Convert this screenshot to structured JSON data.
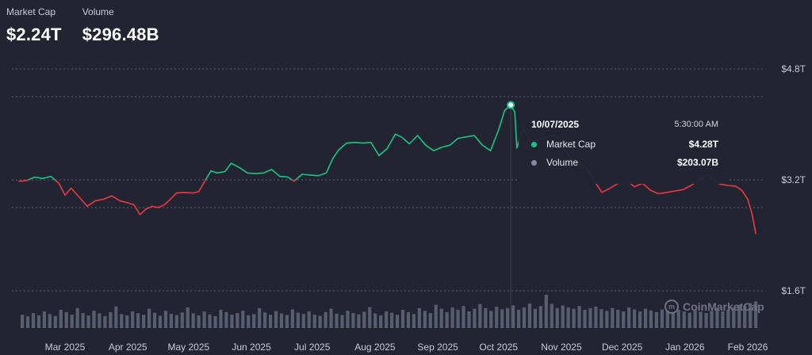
{
  "header": {
    "market_cap_label": "Market Cap",
    "market_cap_value": "$2.24T",
    "volume_label": "Volume",
    "volume_value": "$296.48B"
  },
  "tooltip": {
    "date": "10/07/2025",
    "time": "5:30:00 AM",
    "series": [
      {
        "name": "Market Cap",
        "value": "$4.28T",
        "color": "#16c784"
      },
      {
        "name": "Volume",
        "value": "$203.07B",
        "color": "#858ca2"
      }
    ]
  },
  "watermark": {
    "text": "CoinMarketCap",
    "icon": "coinmarketcap-logo-icon"
  },
  "colors": {
    "up": "#16c784",
    "down": "#ea3943",
    "volume": "#858ca2",
    "grid": "#5b5f6d"
  },
  "chart_data": {
    "type": "line",
    "baseline": 3.2,
    "y_unit": "T",
    "yticks": [
      {
        "value": 4.8,
        "label": "$4.8T"
      },
      {
        "value": 3.2,
        "label": "$3.2T"
      },
      {
        "value": 1.6,
        "label": "$1.6T"
      }
    ],
    "ylim": [
      1.6,
      4.8
    ],
    "gridlines": [
      4.8,
      4.4,
      3.2,
      2.8,
      1.6
    ],
    "xticks": [
      {
        "date": "2025-03-01",
        "label": "Mar 2025"
      },
      {
        "date": "2025-04-01",
        "label": "Apr 2025"
      },
      {
        "date": "2025-05-01",
        "label": "May 2025"
      },
      {
        "date": "2025-06-01",
        "label": "Jun 2025"
      },
      {
        "date": "2025-07-01",
        "label": "Jul 2025"
      },
      {
        "date": "2025-08-01",
        "label": "Aug 2025"
      },
      {
        "date": "2025-09-01",
        "label": "Sep 2025"
      },
      {
        "date": "2025-10-01",
        "label": "Oct 2025"
      },
      {
        "date": "2025-11-01",
        "label": "Nov 2025"
      },
      {
        "date": "2025-12-01",
        "label": "Dec 2025"
      },
      {
        "date": "2026-01-01",
        "label": "Jan 2026"
      },
      {
        "date": "2026-02-01",
        "label": "Feb 2026"
      }
    ],
    "highlight": {
      "date": "2025-10-07",
      "value": 4.28
    },
    "series": [
      {
        "name": "Market Cap",
        "points": [
          [
            "2025-02-06",
            3.18
          ],
          [
            "2025-02-10",
            3.19
          ],
          [
            "2025-02-14",
            3.24
          ],
          [
            "2025-02-18",
            3.22
          ],
          [
            "2025-02-22",
            3.25
          ],
          [
            "2025-02-26",
            3.15
          ],
          [
            "2025-03-01",
            2.98
          ],
          [
            "2025-03-04",
            3.08
          ],
          [
            "2025-03-08",
            2.95
          ],
          [
            "2025-03-12",
            2.82
          ],
          [
            "2025-03-16",
            2.9
          ],
          [
            "2025-03-20",
            2.92
          ],
          [
            "2025-03-24",
            2.97
          ],
          [
            "2025-03-28",
            2.9
          ],
          [
            "2025-04-01",
            2.87
          ],
          [
            "2025-04-04",
            2.84
          ],
          [
            "2025-04-07",
            2.7
          ],
          [
            "2025-04-10",
            2.78
          ],
          [
            "2025-04-13",
            2.82
          ],
          [
            "2025-04-16",
            2.8
          ],
          [
            "2025-04-19",
            2.84
          ],
          [
            "2025-04-22",
            2.92
          ],
          [
            "2025-04-25",
            3.01
          ],
          [
            "2025-04-29",
            3.02
          ],
          [
            "2025-05-03",
            3.01
          ],
          [
            "2025-05-06",
            3.03
          ],
          [
            "2025-05-09",
            3.18
          ],
          [
            "2025-05-12",
            3.33
          ],
          [
            "2025-05-15",
            3.3
          ],
          [
            "2025-05-19",
            3.32
          ],
          [
            "2025-05-22",
            3.44
          ],
          [
            "2025-05-26",
            3.38
          ],
          [
            "2025-05-30",
            3.3
          ],
          [
            "2025-06-03",
            3.29
          ],
          [
            "2025-06-07",
            3.3
          ],
          [
            "2025-06-11",
            3.35
          ],
          [
            "2025-06-15",
            3.25
          ],
          [
            "2025-06-19",
            3.24
          ],
          [
            "2025-06-22",
            3.18
          ],
          [
            "2025-06-26",
            3.28
          ],
          [
            "2025-06-30",
            3.27
          ],
          [
            "2025-07-04",
            3.26
          ],
          [
            "2025-07-08",
            3.3
          ],
          [
            "2025-07-11",
            3.5
          ],
          [
            "2025-07-14",
            3.63
          ],
          [
            "2025-07-18",
            3.73
          ],
          [
            "2025-07-22",
            3.74
          ],
          [
            "2025-07-26",
            3.73
          ],
          [
            "2025-07-30",
            3.74
          ],
          [
            "2025-08-03",
            3.55
          ],
          [
            "2025-08-07",
            3.65
          ],
          [
            "2025-08-11",
            3.86
          ],
          [
            "2025-08-14",
            3.82
          ],
          [
            "2025-08-18",
            3.72
          ],
          [
            "2025-08-22",
            3.84
          ],
          [
            "2025-08-26",
            3.7
          ],
          [
            "2025-08-30",
            3.62
          ],
          [
            "2025-09-03",
            3.67
          ],
          [
            "2025-09-07",
            3.7
          ],
          [
            "2025-09-11",
            3.8
          ],
          [
            "2025-09-15",
            3.82
          ],
          [
            "2025-09-19",
            3.84
          ],
          [
            "2025-09-23",
            3.7
          ],
          [
            "2025-09-27",
            3.62
          ],
          [
            "2025-10-01",
            3.92
          ],
          [
            "2025-10-04",
            4.2
          ],
          [
            "2025-10-07",
            4.28
          ],
          [
            "2025-10-09",
            4.18
          ],
          [
            "2025-10-10",
            3.66
          ],
          [
            "2025-10-13",
            3.95
          ],
          [
            "2025-10-17",
            3.75
          ],
          [
            "2025-10-21",
            3.78
          ],
          [
            "2025-10-25",
            3.82
          ],
          [
            "2025-10-29",
            3.85
          ],
          [
            "2025-11-02",
            3.65
          ],
          [
            "2025-11-06",
            3.5
          ],
          [
            "2025-11-10",
            3.45
          ],
          [
            "2025-11-14",
            3.35
          ],
          [
            "2025-11-18",
            3.15
          ],
          [
            "2025-11-21",
            3.02
          ],
          [
            "2025-11-25",
            3.08
          ],
          [
            "2025-11-29",
            3.15
          ],
          [
            "2025-12-03",
            3.2
          ],
          [
            "2025-12-07",
            3.1
          ],
          [
            "2025-12-11",
            3.15
          ],
          [
            "2025-12-15",
            3.05
          ],
          [
            "2025-12-19",
            3.0
          ],
          [
            "2025-12-23",
            3.02
          ],
          [
            "2025-12-27",
            3.04
          ],
          [
            "2025-12-31",
            3.06
          ],
          [
            "2026-01-04",
            3.12
          ],
          [
            "2026-01-08",
            3.2
          ],
          [
            "2026-01-12",
            3.28
          ],
          [
            "2026-01-15",
            3.21
          ],
          [
            "2026-01-18",
            3.14
          ],
          [
            "2026-01-22",
            3.12
          ],
          [
            "2026-01-26",
            3.11
          ],
          [
            "2026-01-29",
            3.05
          ],
          [
            "2026-02-01",
            2.92
          ],
          [
            "2026-02-03",
            2.72
          ],
          [
            "2026-02-05",
            2.42
          ]
        ]
      },
      {
        "name": "Volume",
        "ylim": [
          0,
          1
        ],
        "values": [
          0.4,
          0.35,
          0.45,
          0.38,
          0.5,
          0.42,
          0.36,
          0.55,
          0.48,
          0.4,
          0.6,
          0.45,
          0.38,
          0.52,
          0.44,
          0.36,
          0.48,
          0.65,
          0.42,
          0.38,
          0.5,
          0.45,
          0.4,
          0.58,
          0.46,
          0.37,
          0.52,
          0.43,
          0.39,
          0.47,
          0.62,
          0.44,
          0.38,
          0.5,
          0.41,
          0.36,
          0.55,
          0.48,
          0.4,
          0.45,
          0.52,
          0.38,
          0.42,
          0.6,
          0.47,
          0.4,
          0.51,
          0.44,
          0.39,
          0.56,
          0.46,
          0.42,
          0.5,
          0.4,
          0.37,
          0.48,
          0.58,
          0.43,
          0.39,
          0.52,
          0.45,
          0.41,
          0.49,
          0.63,
          0.44,
          0.38,
          0.5,
          0.46,
          0.4,
          0.55,
          0.48,
          0.42,
          0.6,
          0.52,
          0.45,
          0.7,
          0.58,
          0.48,
          0.62,
          0.55,
          0.66,
          0.5,
          0.58,
          0.72,
          0.6,
          0.52,
          0.64,
          0.56,
          0.6,
          0.68,
          0.55,
          0.62,
          0.74,
          0.58,
          0.66,
          1.0,
          0.72,
          0.6,
          0.68,
          0.62,
          0.58,
          0.66,
          0.55,
          0.6,
          0.64,
          0.57,
          0.52,
          0.6,
          0.55,
          0.5,
          0.62,
          0.56,
          0.5,
          0.58,
          0.53,
          0.48,
          0.56,
          0.52,
          0.47,
          0.55,
          0.5,
          0.46,
          0.54,
          0.49,
          0.45,
          0.52,
          0.6,
          0.5,
          0.55,
          0.62,
          0.7,
          0.66,
          0.75,
          0.8
        ]
      }
    ]
  }
}
